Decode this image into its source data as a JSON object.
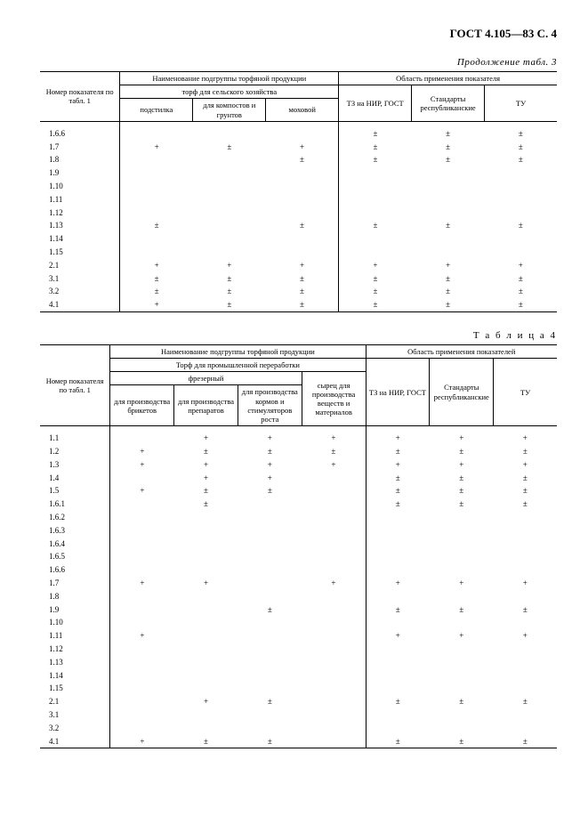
{
  "page_header": "ГОСТ 4.105—83 С. 4",
  "table3": {
    "caption": "Продолжение табл. 3",
    "header": {
      "col_num": "Номер показателя по табл. 1",
      "subgroup_title": "Наименование подгруппы торфяной продукции",
      "application_title": "Область применения показателя",
      "agro_title": "торф для сельского хозяйства",
      "cols": [
        "подстилка",
        "для компостов и грунтов",
        "моховой",
        "ТЗ на НИР, ГОСТ",
        "Стандарты республикан­ские",
        "ТУ"
      ]
    },
    "rows": [
      {
        "id": "1.6.6",
        "c": [
          "",
          "",
          "",
          "±",
          "±",
          "±"
        ]
      },
      {
        "id": "1.7",
        "c": [
          "+",
          "±",
          "+",
          "±",
          "±",
          "±"
        ]
      },
      {
        "id": "1.8",
        "c": [
          "",
          "",
          "±",
          "±",
          "±",
          "±"
        ]
      },
      {
        "id": "1.9",
        "c": [
          "",
          "",
          "",
          "",
          "",
          ""
        ]
      },
      {
        "id": "1.10",
        "c": [
          "",
          "",
          "",
          "",
          "",
          ""
        ]
      },
      {
        "id": "1.11",
        "c": [
          "",
          "",
          "",
          "",
          "",
          ""
        ]
      },
      {
        "id": "1.12",
        "c": [
          "",
          "",
          "",
          "",
          "",
          ""
        ]
      },
      {
        "id": "1.13",
        "c": [
          "±",
          "",
          "±",
          "±",
          "±",
          "±"
        ]
      },
      {
        "id": "1.14",
        "c": [
          "",
          "",
          "",
          "",
          "",
          ""
        ]
      },
      {
        "id": "1.15",
        "c": [
          "",
          "",
          "",
          "",
          "",
          ""
        ]
      },
      {
        "id": "2.1",
        "c": [
          "+",
          "+",
          "+",
          "+",
          "+",
          "+"
        ]
      },
      {
        "id": "3.1",
        "c": [
          "±",
          "±",
          "±",
          "±",
          "±",
          "±"
        ]
      },
      {
        "id": "3.2",
        "c": [
          "±",
          "±",
          "±",
          "±",
          "±",
          "±"
        ]
      },
      {
        "id": "4.1",
        "c": [
          "+",
          "±",
          "±",
          "±",
          "±",
          "±"
        ]
      }
    ]
  },
  "table4": {
    "caption": "Т а б л и ц а   4",
    "header": {
      "col_num": "Номер показателя по табл. 1",
      "subgroup_title": "Наименование подгруппы торфяной продукции",
      "application_title": "Область применения показателей",
      "industrial_title": "Торф для промышленной переработки",
      "milled_title": "фрезерный",
      "cols": [
        "для производства брикетов",
        "для производства препаратов",
        "для производства кормов и стимуляторов роста",
        "сырец для производства веществ и материалов",
        "ТЗ на НИР, ГОСТ",
        "Стандарты республикан­ские",
        "ТУ"
      ]
    },
    "rows": [
      {
        "id": "1.1",
        "c": [
          "",
          "+",
          "+",
          "+",
          "+",
          "+",
          "+"
        ]
      },
      {
        "id": "1.2",
        "c": [
          "+",
          "±",
          "±",
          "±",
          "±",
          "±",
          "±"
        ]
      },
      {
        "id": "1.3",
        "c": [
          "+",
          "+",
          "+",
          "+",
          "+",
          "+",
          "+"
        ]
      },
      {
        "id": "1.4",
        "c": [
          "",
          "+",
          "+",
          "",
          "±",
          "±",
          "±"
        ]
      },
      {
        "id": "1.5",
        "c": [
          "+",
          "±",
          "±",
          "",
          "±",
          "±",
          "±"
        ]
      },
      {
        "id": "1.6.1",
        "c": [
          "",
          "±",
          "",
          "",
          "±",
          "±",
          "±"
        ]
      },
      {
        "id": "1.6.2",
        "c": [
          "",
          "",
          "",
          "",
          "",
          "",
          ""
        ]
      },
      {
        "id": "1.6.3",
        "c": [
          "",
          "",
          "",
          "",
          "",
          "",
          ""
        ]
      },
      {
        "id": "1.6.4",
        "c": [
          "",
          "",
          "",
          "",
          "",
          "",
          ""
        ]
      },
      {
        "id": "1.6.5",
        "c": [
          "",
          "",
          "",
          "",
          "",
          "",
          ""
        ]
      },
      {
        "id": "1.6.6",
        "c": [
          "",
          "",
          "",
          "",
          "",
          "",
          ""
        ]
      },
      {
        "id": "1.7",
        "c": [
          "+",
          "+",
          "",
          "+",
          "+",
          "+",
          "+"
        ]
      },
      {
        "id": "1.8",
        "c": [
          "",
          "",
          "",
          "",
          "",
          "",
          ""
        ]
      },
      {
        "id": "1.9",
        "c": [
          "",
          "",
          "±",
          "",
          "±",
          "±",
          "±"
        ]
      },
      {
        "id": "1.10",
        "c": [
          "",
          "",
          "",
          "",
          "",
          "",
          ""
        ]
      },
      {
        "id": "1.11",
        "c": [
          "+",
          "",
          "",
          "",
          "+",
          "+",
          "+"
        ]
      },
      {
        "id": "1.12",
        "c": [
          "",
          "",
          "",
          "",
          "",
          "",
          ""
        ]
      },
      {
        "id": "1.13",
        "c": [
          "",
          "",
          "",
          "",
          "",
          "",
          ""
        ]
      },
      {
        "id": "1.14",
        "c": [
          "",
          "",
          "",
          "",
          "",
          "",
          ""
        ]
      },
      {
        "id": "1.15",
        "c": [
          "",
          "",
          "",
          "",
          "",
          "",
          ""
        ]
      },
      {
        "id": "2.1",
        "c": [
          "",
          "+",
          "±",
          "",
          "±",
          "±",
          "±"
        ]
      },
      {
        "id": "3.1",
        "c": [
          "",
          "",
          "",
          "",
          "",
          "",
          ""
        ]
      },
      {
        "id": "3.2",
        "c": [
          "",
          "",
          "",
          "",
          "",
          "",
          ""
        ]
      },
      {
        "id": "4.1",
        "c": [
          "+",
          "±",
          "±",
          "",
          "±",
          "±",
          "±"
        ]
      }
    ]
  }
}
